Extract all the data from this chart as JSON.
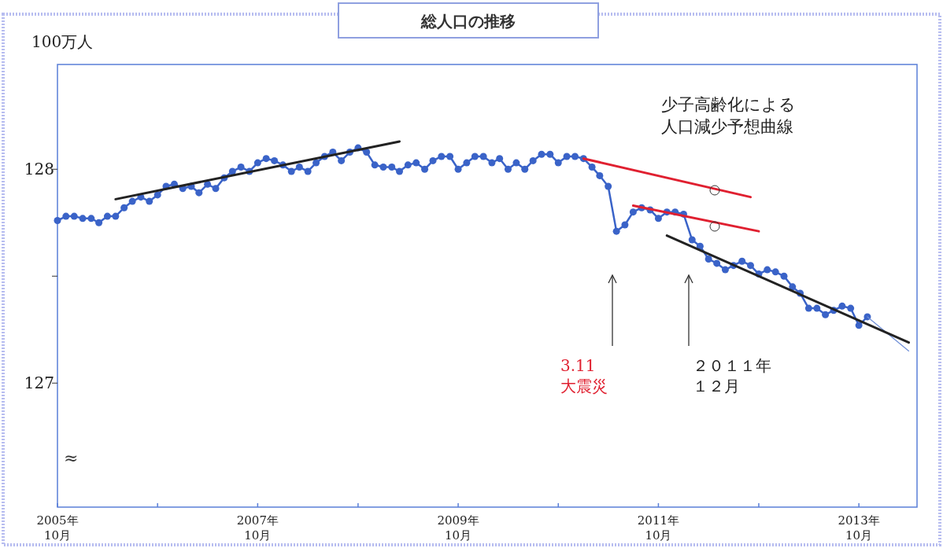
{
  "chart_data": {
    "type": "line",
    "title": "総人口の推移",
    "ylabel": "100万人",
    "xlim": [
      "2005-10",
      "2014-05"
    ],
    "ylim": [
      126.42,
      128.49
    ],
    "xticks": [
      {
        "value": "2005-10",
        "label": "2005年\n10月"
      },
      {
        "value": "2006-10",
        "label": null
      },
      {
        "value": "2007-10",
        "label": "2007年\n10月"
      },
      {
        "value": "2008-10",
        "label": null
      },
      {
        "value": "2009-10",
        "label": "2009年\n10月"
      },
      {
        "value": "2010-10",
        "label": null
      },
      {
        "value": "2011-10",
        "label": "2011年\n10月"
      },
      {
        "value": "2012-10",
        "label": null
      },
      {
        "value": "2013-10",
        "label": "2013年\n10月"
      }
    ],
    "yticks": [
      127,
      {
        "value": 127.5,
        "label": null
      },
      128
    ],
    "grid": false,
    "marker": "circle",
    "line_style": "solid",
    "series": [
      {
        "color": "#3a63c8",
        "x": [
          "2005-10",
          "2005-11",
          "2005-12",
          "2006-01",
          "2006-02",
          "2006-03",
          "2006-04",
          "2006-05",
          "2006-06",
          "2006-07",
          "2006-08",
          "2006-09",
          "2006-10",
          "2006-11",
          "2006-12",
          "2007-01",
          "2007-02",
          "2007-03",
          "2007-04",
          "2007-05",
          "2007-06",
          "2007-07",
          "2007-08",
          "2007-09",
          "2007-10",
          "2007-11",
          "2007-12",
          "2008-01",
          "2008-02",
          "2008-03",
          "2008-04",
          "2008-05",
          "2008-06",
          "2008-07",
          "2008-08",
          "2008-09",
          "2008-10",
          "2008-11",
          "2008-12",
          "2009-01",
          "2009-02",
          "2009-03",
          "2009-04",
          "2009-05",
          "2009-06",
          "2009-07",
          "2009-08",
          "2009-09",
          "2009-10",
          "2009-11",
          "2009-12",
          "2010-01",
          "2010-02",
          "2010-03",
          "2010-04",
          "2010-05",
          "2010-06",
          "2010-07",
          "2010-08",
          "2010-09",
          "2010-10",
          "2010-11",
          "2010-12",
          "2011-01",
          "2011-02",
          "2011-03",
          "2011-04",
          "2011-05",
          "2011-06",
          "2011-07",
          "2011-08",
          "2011-09",
          "2011-10",
          "2011-11",
          "2011-12",
          "2012-01",
          "2012-02",
          "2012-03",
          "2012-04",
          "2012-05",
          "2012-06",
          "2012-07",
          "2012-08",
          "2012-09",
          "2012-10",
          "2012-11",
          "2012-12",
          "2013-01",
          "2013-02",
          "2013-03",
          "2013-04",
          "2013-05",
          "2013-06",
          "2013-07",
          "2013-08",
          "2013-09",
          "2013-10",
          "2013-11"
        ],
        "values": [
          127.76,
          127.78,
          127.78,
          127.77,
          127.77,
          127.75,
          127.78,
          127.78,
          127.82,
          127.85,
          127.87,
          127.85,
          127.88,
          127.92,
          127.93,
          127.91,
          127.92,
          127.89,
          127.93,
          127.91,
          127.96,
          127.99,
          128.01,
          127.99,
          128.03,
          128.05,
          128.04,
          128.02,
          127.99,
          128.01,
          127.99,
          128.03,
          128.06,
          128.08,
          128.04,
          128.08,
          128.1,
          128.08,
          128.02,
          128.01,
          128.01,
          127.99,
          128.02,
          128.03,
          128.0,
          128.04,
          128.06,
          128.06,
          128.0,
          128.03,
          128.06,
          128.06,
          128.03,
          128.05,
          128.0,
          128.03,
          128.0,
          128.04,
          128.07,
          128.07,
          128.03,
          128.06,
          128.06,
          128.05,
          128.01,
          127.97,
          127.92,
          127.71,
          127.74,
          127.8,
          127.82,
          127.81,
          127.77,
          127.8,
          127.8,
          127.79,
          127.67,
          127.64,
          127.58,
          127.56,
          127.53,
          127.55,
          127.57,
          127.55,
          127.51,
          127.53,
          127.52,
          127.5,
          127.45,
          127.42,
          127.35,
          127.35,
          127.32,
          127.34,
          127.36,
          127.35,
          127.27,
          127.31
        ]
      },
      {
        "color": "#6f8fd8",
        "marker": "none",
        "x": [
          "2013-11",
          "2014-04"
        ],
        "values": [
          127.31,
          127.15
        ]
      },
      {
        "color": "#222222",
        "marker": "none",
        "x": [
          "2006-05",
          "2009-03"
        ],
        "values": [
          127.86,
          128.13
        ]
      },
      {
        "color": "#e02030",
        "marker": "none",
        "x": [
          "2011-01",
          "2012-09"
        ],
        "values": [
          128.05,
          127.87
        ]
      },
      {
        "color": "#e02030",
        "marker": "none",
        "x": [
          "2011-07",
          "2012-10"
        ],
        "values": [
          127.83,
          127.71
        ]
      },
      {
        "color": "#222222",
        "marker": "none",
        "x": [
          "2011-11",
          "2014-04"
        ],
        "values": [
          127.69,
          127.19
        ]
      }
    ],
    "annotations": [
      "3.11大震災",
      "２０１１年１２月",
      "少子高齢化による人口減少予想曲線",
      "≈"
    ]
  }
}
